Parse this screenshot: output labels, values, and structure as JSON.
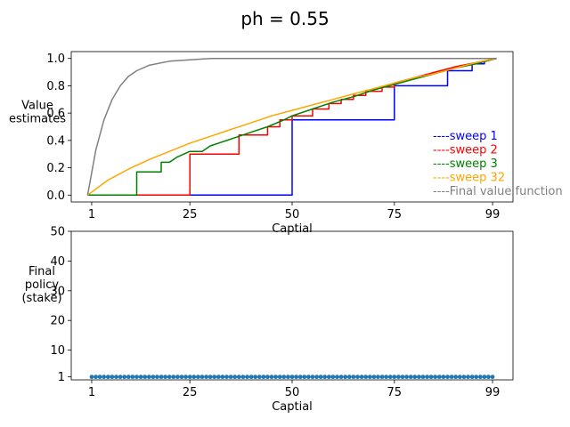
{
  "figure": {
    "suptitle": "ph = 0.55"
  },
  "chart_data": [
    {
      "type": "line",
      "title": "",
      "xlabel": "Captial",
      "ylabel": "Value\nestimates",
      "xlim": [
        -4,
        104
      ],
      "ylim": [
        -0.05,
        1.05
      ],
      "xticks": [
        1,
        25,
        50,
        75,
        99
      ],
      "yticks": [
        0.0,
        0.2,
        0.4,
        0.6,
        0.8,
        1.0
      ],
      "ytick_labels": [
        "0.0",
        "0.2",
        "0.4",
        "0.6",
        "0.8",
        "1.0"
      ],
      "legend_position": "lower-right",
      "series": [
        {
          "name": "----sweep 1",
          "color": "#0000ff",
          "x": [
            0,
            50,
            50,
            75,
            75,
            88,
            88,
            94,
            94,
            97,
            97,
            100
          ],
          "y": [
            0,
            0,
            0.55,
            0.55,
            0.8,
            0.8,
            0.91,
            0.91,
            0.96,
            0.96,
            0.98,
            1.0
          ]
        },
        {
          "name": "----sweep 2",
          "color": "#ff0000",
          "x": [
            0,
            25,
            25,
            37,
            37,
            44,
            44,
            47,
            47,
            50,
            50,
            55,
            55,
            59,
            59,
            62,
            62,
            65,
            65,
            68,
            68,
            72,
            72,
            75,
            75,
            80,
            85,
            90,
            95,
            100
          ],
          "y": [
            0,
            0,
            0.3,
            0.3,
            0.44,
            0.44,
            0.5,
            0.5,
            0.55,
            0.55,
            0.58,
            0.58,
            0.63,
            0.63,
            0.67,
            0.67,
            0.7,
            0.7,
            0.73,
            0.73,
            0.76,
            0.76,
            0.79,
            0.79,
            0.82,
            0.86,
            0.9,
            0.94,
            0.97,
            1.0
          ]
        },
        {
          "name": "----sweep 3",
          "color": "#008000",
          "x": [
            0,
            12,
            12,
            18,
            18,
            20,
            22,
            25,
            28,
            30,
            33,
            36,
            40,
            44,
            48,
            50,
            55,
            60,
            65,
            70,
            75,
            80,
            85,
            90,
            95,
            100
          ],
          "y": [
            0,
            0,
            0.17,
            0.17,
            0.24,
            0.24,
            0.28,
            0.32,
            0.32,
            0.36,
            0.39,
            0.42,
            0.46,
            0.5,
            0.55,
            0.58,
            0.63,
            0.68,
            0.72,
            0.77,
            0.81,
            0.85,
            0.89,
            0.93,
            0.96,
            1.0
          ]
        },
        {
          "name": "----sweep 32",
          "color": "#ffa500",
          "x": [
            0,
            5,
            10,
            15,
            20,
            25,
            30,
            35,
            40,
            45,
            50,
            55,
            60,
            65,
            70,
            75,
            80,
            85,
            90,
            95,
            100
          ],
          "y": [
            0,
            0.11,
            0.19,
            0.26,
            0.32,
            0.38,
            0.43,
            0.48,
            0.53,
            0.58,
            0.62,
            0.66,
            0.7,
            0.74,
            0.78,
            0.82,
            0.86,
            0.89,
            0.93,
            0.97,
            1.0
          ]
        },
        {
          "name": "----Final value function",
          "color": "#808080",
          "x": [
            0,
            2,
            4,
            6,
            8,
            10,
            12,
            15,
            20,
            25,
            30,
            40,
            60,
            100
          ],
          "y": [
            0,
            0.33,
            0.55,
            0.7,
            0.8,
            0.87,
            0.91,
            0.95,
            0.98,
            0.99,
            1.0,
            1.0,
            1.0,
            1.0
          ]
        }
      ]
    },
    {
      "type": "line",
      "title": "",
      "xlabel": "Captial",
      "ylabel": "Final\npolicy\n(stake)",
      "xlim": [
        -4,
        104
      ],
      "ylim": [
        0,
        50
      ],
      "xticks": [
        1,
        25,
        50,
        75,
        99
      ],
      "yticks": [
        1,
        10,
        20,
        30,
        40,
        50
      ],
      "series": [
        {
          "name": "",
          "color": "#1f77b4",
          "marker": "circle",
          "x_start": 1,
          "x_end": 99,
          "value": 1
        }
      ]
    }
  ]
}
